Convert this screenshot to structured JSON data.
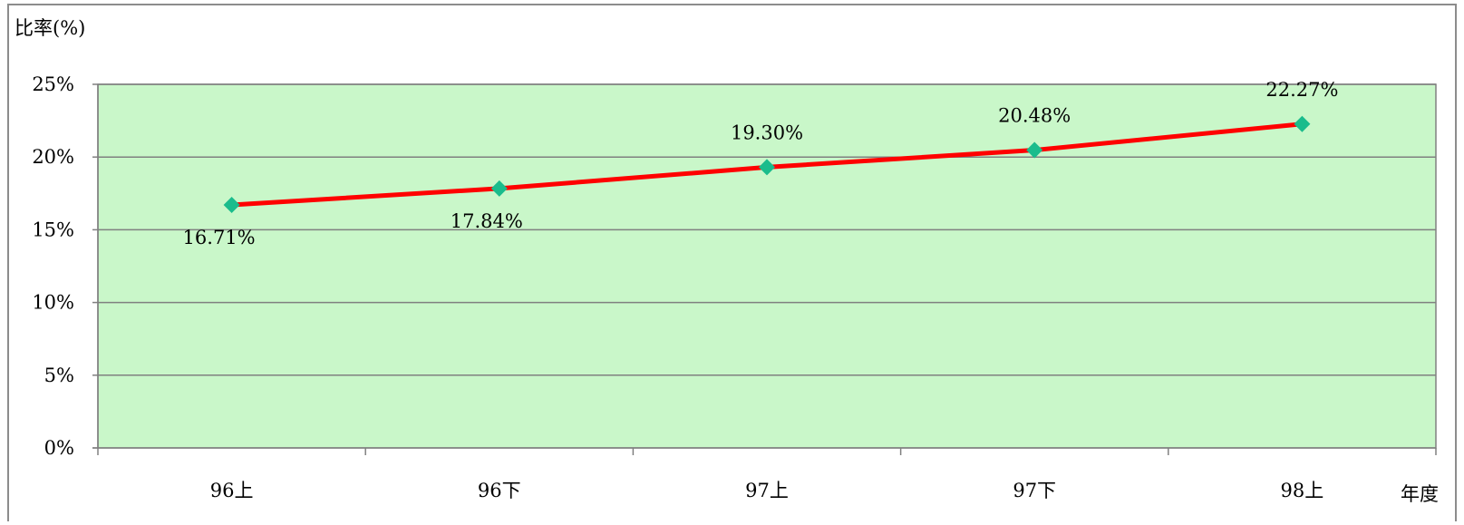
{
  "chart_data": {
    "type": "line",
    "categories": [
      "96上",
      "96下",
      "97上",
      "97下",
      "98上"
    ],
    "series": [
      {
        "values": [
          16.71,
          17.84,
          19.3,
          20.48,
          22.27
        ],
        "line_color": "#ff0000",
        "marker_color": "#1abc8c",
        "marker": "diamond"
      }
    ],
    "data_labels": [
      "16.71%",
      "17.84%",
      "19.30%",
      "20.48%",
      "22.27%"
    ],
    "y_ticks": [
      0,
      5,
      10,
      15,
      20,
      25
    ],
    "y_tick_labels": [
      "0%",
      "5%",
      "10%",
      "15%",
      "20%",
      "25%"
    ],
    "ylim": [
      0,
      25
    ],
    "ylabel": "比率(%)",
    "xlabel": "年度",
    "grid": true,
    "plot_background": "#c9f7c9",
    "grid_color": "#808080"
  }
}
